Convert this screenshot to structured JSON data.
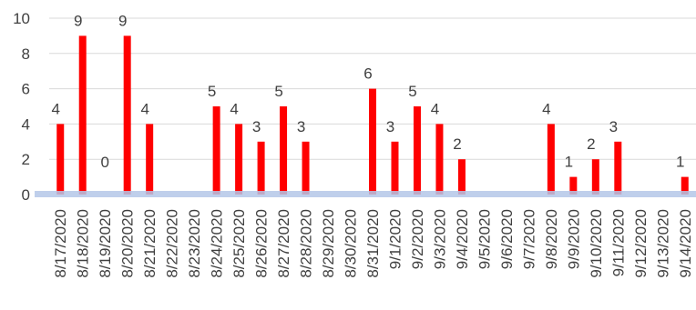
{
  "chart_data": {
    "type": "bar",
    "title": "",
    "xlabel": "",
    "ylabel": "",
    "ylim": [
      0,
      10
    ],
    "yticks": [
      0,
      2,
      4,
      6,
      8,
      10
    ],
    "grid": true,
    "legend": "none",
    "bar_color": "#ff0000",
    "axis_color": "#b4c7e7",
    "categories": [
      "8/17/2020",
      "8/18/2020",
      "8/19/2020",
      "8/20/2020",
      "8/21/2020",
      "8/22/2020",
      "8/23/2020",
      "8/24/2020",
      "8/25/2020",
      "8/26/2020",
      "8/27/2020",
      "8/28/2020",
      "8/29/2020",
      "8/30/2020",
      "8/31/2020",
      "9/1/2020",
      "9/2/2020",
      "9/3/2020",
      "9/4/2020",
      "9/5/2020",
      "9/6/2020",
      "9/7/2020",
      "9/8/2020",
      "9/9/2020",
      "9/10/2020",
      "9/11/2020",
      "9/12/2020",
      "9/13/2020",
      "9/14/2020"
    ],
    "values": [
      4,
      9,
      0,
      9,
      4,
      null,
      null,
      5,
      4,
      3,
      5,
      3,
      null,
      null,
      6,
      3,
      5,
      4,
      2,
      null,
      null,
      null,
      4,
      1,
      2,
      3,
      null,
      null,
      1
    ]
  }
}
